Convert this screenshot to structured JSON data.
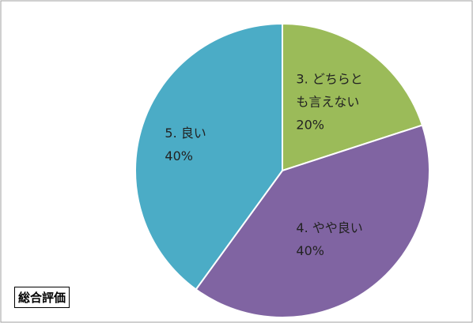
{
  "chart_data": {
    "type": "pie",
    "title": "総合評価",
    "categories": [
      "3. どちらとも言えない",
      "4. やや良い",
      "5. 良い"
    ],
    "values": [
      20,
      40,
      40
    ],
    "value_labels": [
      "20%",
      "40%",
      "40%"
    ],
    "colors": [
      "#9bbb59",
      "#8064a2",
      "#4bacc6"
    ]
  }
}
